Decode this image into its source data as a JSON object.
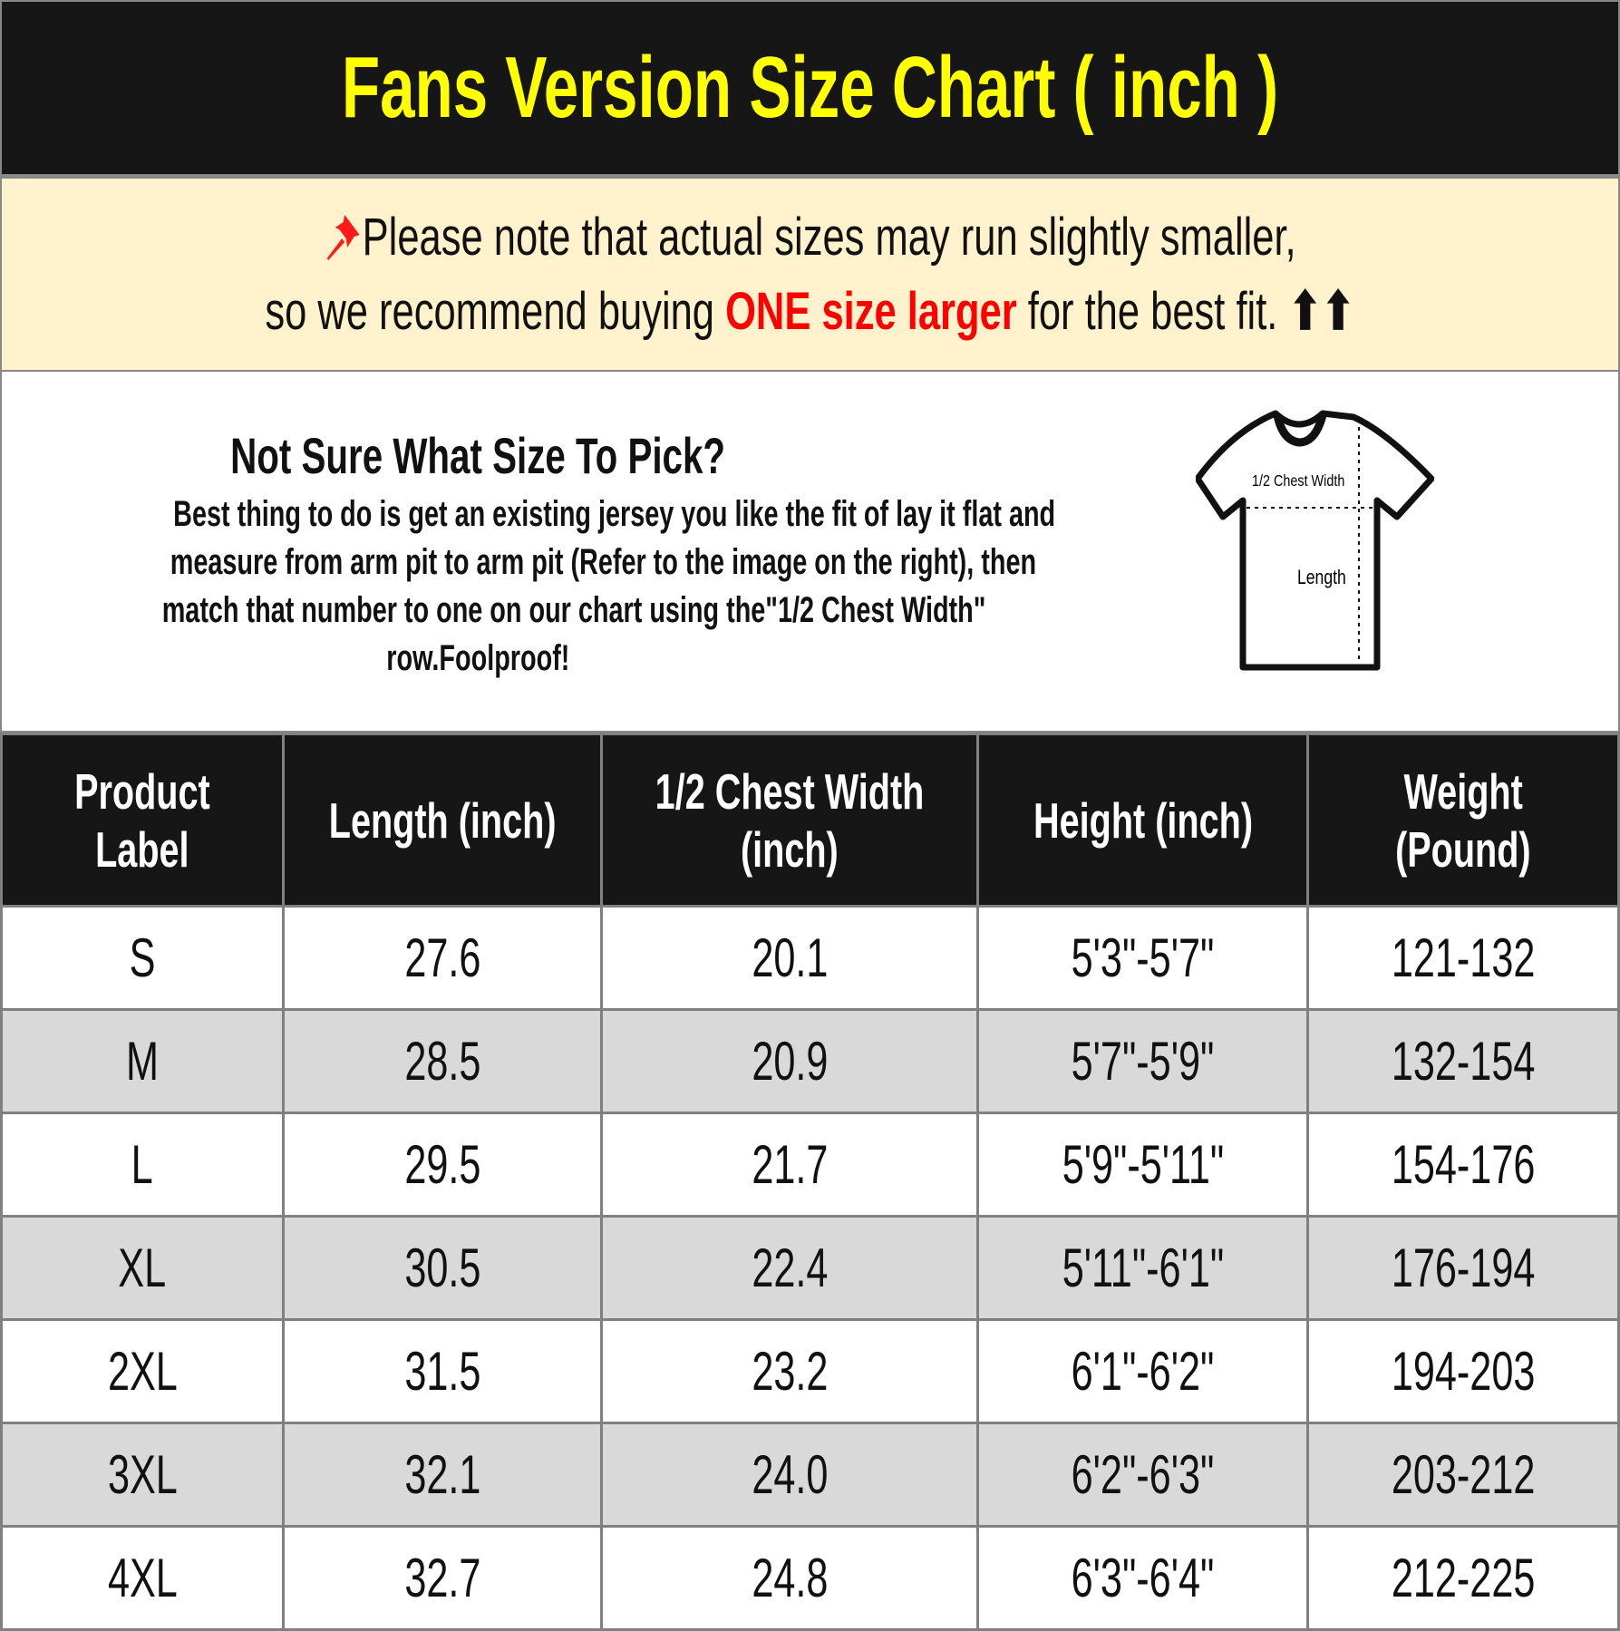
{
  "header": {
    "title": "Fans Version Size Chart ( inch )",
    "title_color": "#ffff00"
  },
  "note": {
    "icon": "pushpin-icon",
    "line1": "Please note that actual sizes may run slightly smaller,",
    "line2_pre": "so we recommend buying ",
    "line2_highlight": "ONE size larger",
    "line2_post": " for the best fit. ",
    "arrows": "⬆⬆",
    "highlight_color": "#ff0000"
  },
  "info": {
    "title": "Not Sure What Size To Pick?",
    "lines": [
      "Best thing to do is get an existing jersey you like the fit of lay it flat and",
      "measure from arm pit to arm pit (Refer to the image on the right), then",
      "match that number to one on our chart using the\"1/2 Chest Width\"",
      "row.Foolproof!"
    ],
    "diagram": {
      "chest_label": "1/2 Chest Width",
      "length_label": "Length"
    }
  },
  "table": {
    "headers": [
      [
        "Product",
        "Label"
      ],
      [
        "Length (inch)",
        ""
      ],
      [
        "1/2 Chest Width",
        "(inch)"
      ],
      [
        "Height (inch)",
        ""
      ],
      [
        "Weight",
        "(Pound)"
      ]
    ],
    "rows": [
      [
        "S",
        "27.6",
        "20.1",
        "5'3\"-5'7\"",
        "121-132"
      ],
      [
        "M",
        "28.5",
        "20.9",
        "5'7\"-5'9\"",
        "132-154"
      ],
      [
        "L",
        "29.5",
        "21.7",
        "5'9\"-5'11\"",
        "154-176"
      ],
      [
        "XL",
        "30.5",
        "22.4",
        "5'11\"-6'1\"",
        "176-194"
      ],
      [
        "2XL",
        "31.5",
        "23.2",
        "6'1\"-6'2\"",
        "194-203"
      ],
      [
        "3XL",
        "32.1",
        "24.0",
        "6'2\"-6'3\"",
        "203-212"
      ],
      [
        "4XL",
        "32.7",
        "24.8",
        "6'3\"-6'4\"",
        "212-225"
      ]
    ]
  }
}
